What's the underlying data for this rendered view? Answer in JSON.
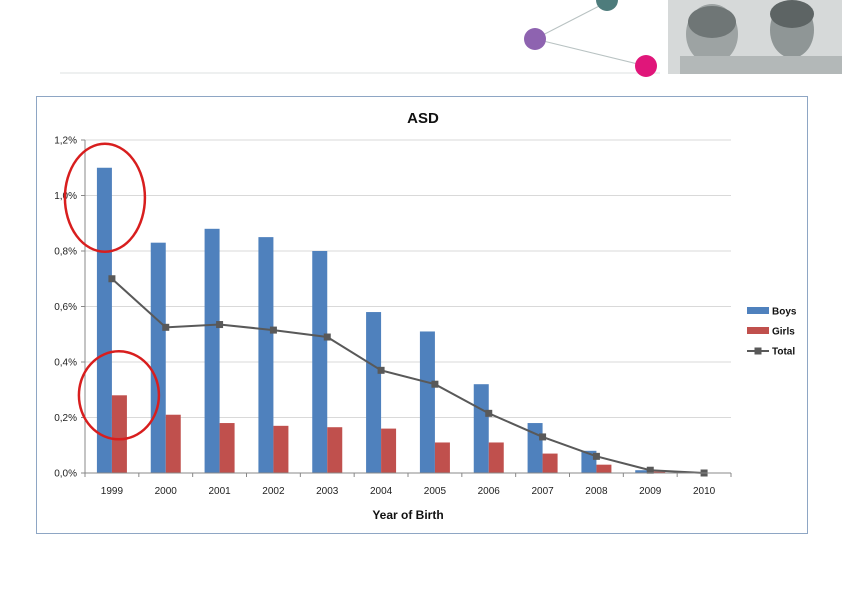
{
  "colors": {
    "boys": "#4f81bd",
    "girls": "#c0504d",
    "total": "#595959",
    "grid": "#d9d9d9",
    "highlight_circle": "#d81e1e",
    "dot_purple": "#8e63b0",
    "dot_pink": "#e0167a",
    "dot_teal": "#4e7c7c"
  },
  "chart_data": {
    "type": "bar",
    "title": "ASD",
    "xlabel": "Year of Birth",
    "ylabel": "",
    "categories": [
      "1999",
      "2000",
      "2001",
      "2002",
      "2003",
      "2004",
      "2005",
      "2006",
      "2007",
      "2008",
      "2009",
      "2010"
    ],
    "series": [
      {
        "name": "Boys",
        "type": "bar",
        "values": [
          1.1,
          0.83,
          0.88,
          0.85,
          0.8,
          0.58,
          0.51,
          0.32,
          0.18,
          0.08,
          0.01,
          0.0
        ]
      },
      {
        "name": "Girls",
        "type": "bar",
        "values": [
          0.28,
          0.21,
          0.18,
          0.17,
          0.165,
          0.16,
          0.11,
          0.11,
          0.07,
          0.03,
          0.005,
          0.0
        ]
      },
      {
        "name": "Total",
        "type": "line",
        "marker": "square",
        "values": [
          0.7,
          0.525,
          0.535,
          0.515,
          0.49,
          0.37,
          0.32,
          0.215,
          0.13,
          0.06,
          0.01,
          0.0
        ]
      }
    ],
    "ylim": [
      0,
      1.2
    ],
    "yticks": [
      0,
      0.2,
      0.4,
      0.6,
      0.8,
      1.0,
      1.2
    ],
    "ytick_labels": [
      "0,0%",
      "0,2%",
      "0,4%",
      "0,6%",
      "0,8%",
      "1,0%",
      "1,2%"
    ],
    "grid": true,
    "legend_position": "right",
    "highlighted_categories": [
      "1999"
    ]
  }
}
